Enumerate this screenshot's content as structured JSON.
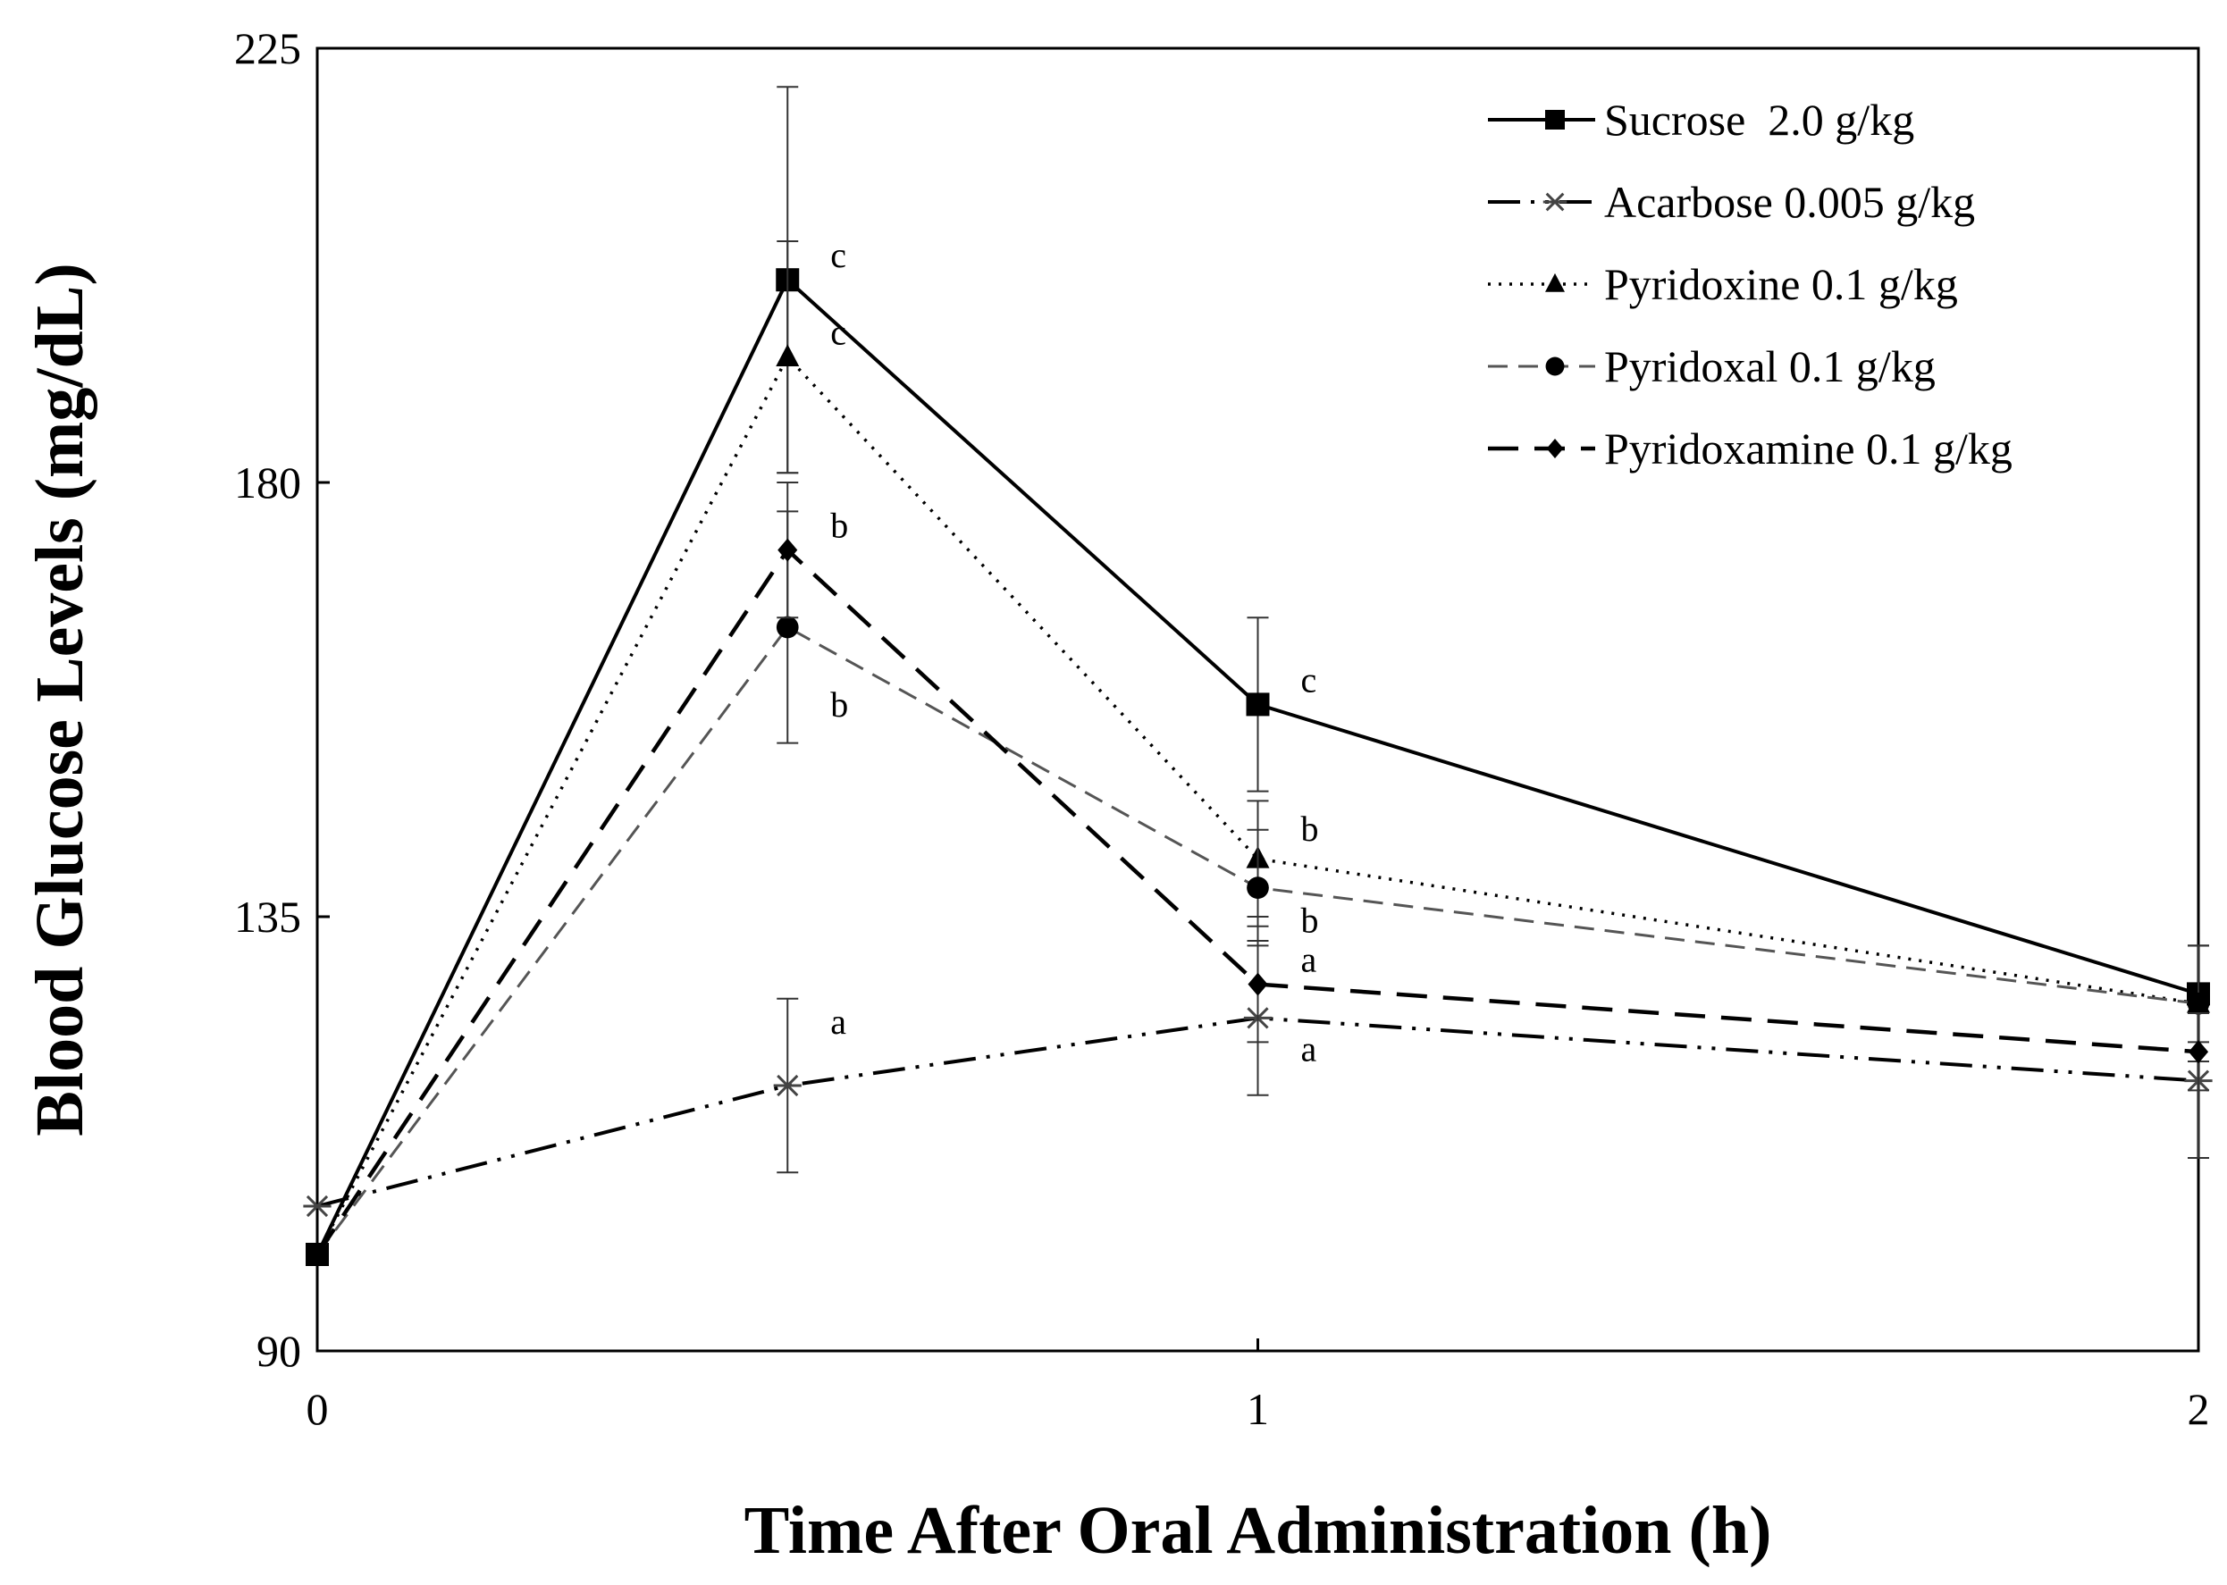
{
  "chart_data": {
    "type": "line",
    "title": "",
    "xlabel": "Time After Oral Administration (h)",
    "ylabel": "Blood Glucose Levels (mg/dL)",
    "xlim": [
      0,
      2
    ],
    "ylim": [
      90,
      225
    ],
    "xticks": [
      0,
      1,
      2
    ],
    "xtick_labels": [
      "0",
      "1",
      "2"
    ],
    "yticks": [
      90,
      135,
      180,
      225
    ],
    "ytick_labels": [
      "90",
      "135",
      "180",
      "225"
    ],
    "grid": false,
    "legend_position": "top-right",
    "series": [
      {
        "name": "Sucrose  2.0 g/kg",
        "marker": "square",
        "line": "solid",
        "color": "#000000",
        "x": [
          0,
          0.5,
          1,
          2
        ],
        "y": [
          100,
          201,
          157,
          127
        ],
        "err": [
          0,
          20,
          9,
          5
        ],
        "labels": [
          "",
          "c",
          "c",
          ""
        ]
      },
      {
        "name": "Acarbose 0.005 g/kg",
        "marker": "asterisk",
        "line": "dashdotdot",
        "color": "#000000",
        "x": [
          0,
          0.5,
          1,
          2
        ],
        "y": [
          105,
          117.5,
          124.5,
          118
        ],
        "err": [
          0,
          9,
          8,
          8
        ],
        "labels": [
          "",
          "a",
          "a",
          ""
        ]
      },
      {
        "name": "Pyridoxine 0.1 g/kg",
        "marker": "triangle",
        "line": "dotted",
        "color": "#000000",
        "x": [
          0,
          0.5,
          1,
          2
        ],
        "y": [
          100,
          193,
          141,
          126
        ],
        "err": [
          0,
          12,
          6,
          6
        ],
        "labels": [
          "",
          "c",
          "b",
          ""
        ]
      },
      {
        "name": "Pyridoxal 0.1 g/kg",
        "marker": "circle",
        "line": "dashed",
        "color": "#555555",
        "x": [
          0,
          0.5,
          1,
          2
        ],
        "y": [
          100,
          165,
          138,
          126
        ],
        "err": [
          0,
          12,
          6,
          6
        ],
        "labels": [
          "",
          "b",
          "b",
          ""
        ]
      },
      {
        "name": "Pyridoxamine 0.1 g/kg",
        "marker": "diamond",
        "line": "longdash",
        "color": "#000000",
        "x": [
          0,
          0.5,
          1,
          2
        ],
        "y": [
          100,
          173,
          128,
          121
        ],
        "err": [
          0,
          7,
          6,
          4
        ],
        "labels": [
          "",
          "b",
          "a",
          ""
        ]
      }
    ]
  }
}
